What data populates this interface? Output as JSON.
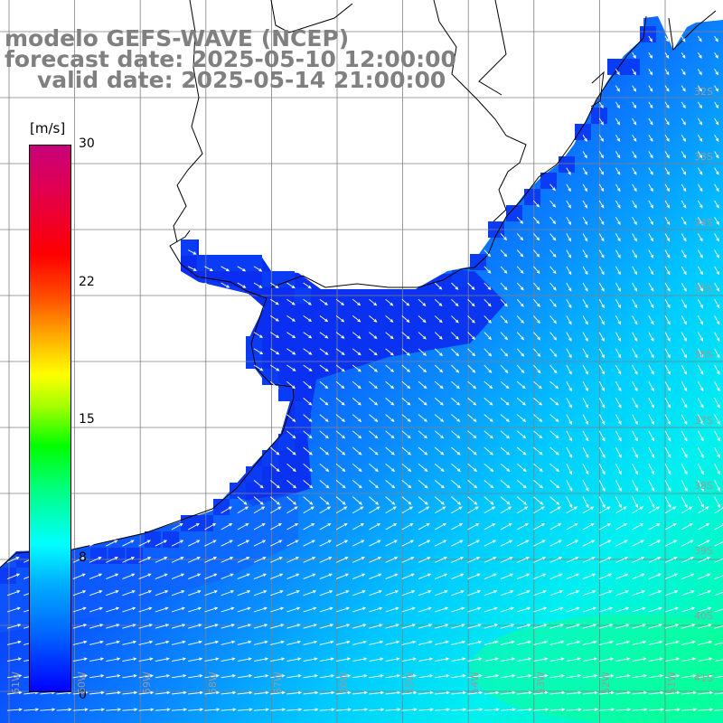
{
  "title": {
    "model": "modelo GEFS-WAVE (NCEP)",
    "forecast": "forecast date: 2025-05-10 12:00:00",
    "valid": "valid date: 2025-05-14 21:00:00"
  },
  "colorbar": {
    "unit": "[m/s]",
    "ticks": [
      "30",
      "22",
      "15",
      "8",
      "0"
    ],
    "colors": {
      "min": "#0000ff",
      "low": "#00b0ff",
      "mid": "#00ffff",
      "green": "#00ff00",
      "yellow": "#ffff00",
      "orange": "#ffa000",
      "red": "#ff0000",
      "max": "#c8007a"
    }
  },
  "lat_labels": [
    "32S",
    "33S",
    "34S",
    "35S",
    "36S",
    "37S",
    "38S",
    "39S",
    "40S",
    "41S"
  ],
  "lon_labels": [
    "61W",
    "60W",
    "59W",
    "58W",
    "57W",
    "56W",
    "55W",
    "54W",
    "53W",
    "52W",
    "51W"
  ],
  "map": {
    "land_color": "#ffffff",
    "grid_color": "#808080",
    "coast_color": "#000000",
    "arrow_color": "#ffffff"
  }
}
